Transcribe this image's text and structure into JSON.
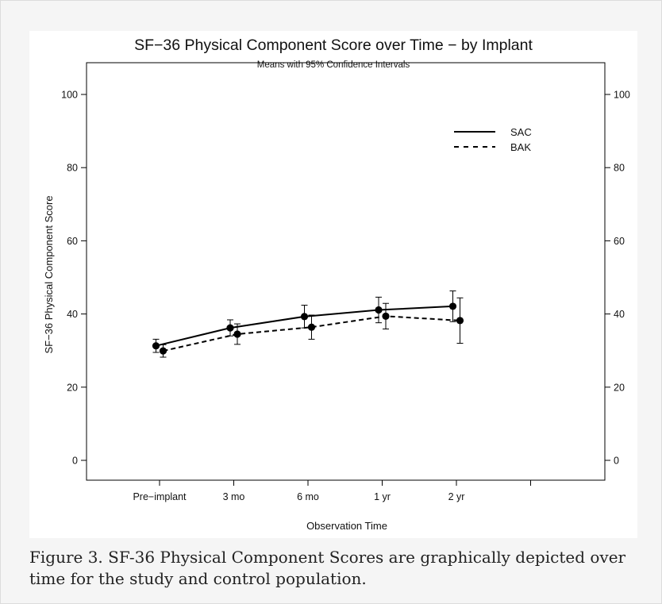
{
  "caption": "Figure 3. SF-36 Physical Component Scores are graphically depicted over time for the study and control population.",
  "chart_data": {
    "type": "line",
    "title": "SF−36 Physical Component Score over Time − by Implant",
    "subtitle": "Means with 95% Confidence Intervals",
    "xlabel": "Observation Time",
    "ylabel": "SF−36 Physical Component Score",
    "categories": [
      "Pre−implant",
      "3 mo",
      "6 mo",
      "1 yr",
      "2 yr"
    ],
    "ylim": [
      0,
      100
    ],
    "yticks": [
      0,
      20,
      40,
      60,
      80,
      100
    ],
    "grid": false,
    "legend_position": "top-right",
    "series": [
      {
        "name": "SAC",
        "line_style": "solid",
        "values": [
          31.3,
          36.2,
          39.3,
          41.1,
          42.1
        ],
        "ci_lower": [
          29.5,
          34.0,
          36.2,
          37.6,
          37.9
        ],
        "ci_upper": [
          33.1,
          38.4,
          42.4,
          44.6,
          46.3
        ]
      },
      {
        "name": "BAK",
        "line_style": "dashed",
        "values": [
          29.9,
          34.5,
          36.4,
          39.4,
          38.2
        ],
        "ci_lower": [
          28.2,
          31.7,
          33.1,
          35.9,
          32.0
        ],
        "ci_upper": [
          31.6,
          37.3,
          39.7,
          42.9,
          44.4
        ]
      }
    ]
  }
}
